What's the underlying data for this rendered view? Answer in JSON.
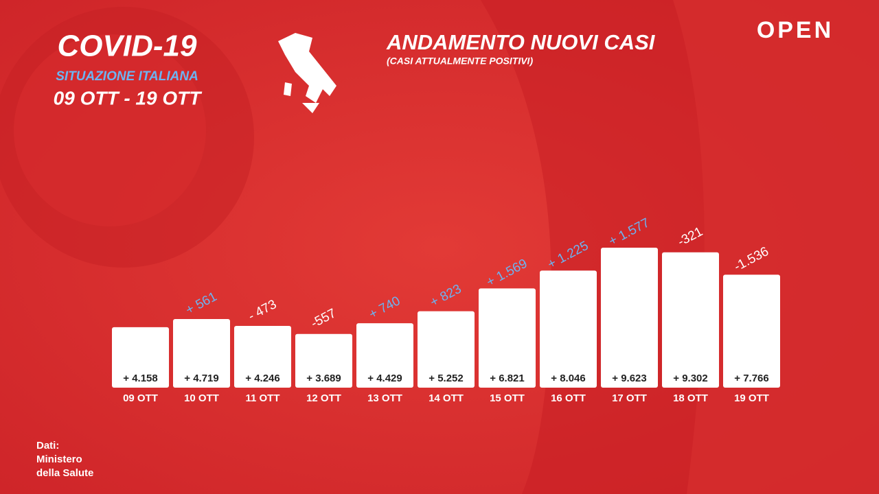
{
  "header": {
    "title": "COVID-19",
    "subtitle": "SITUAZIONE ITALIANA",
    "period": "09 OTT - 19 OTT",
    "logo": "OPEN"
  },
  "footer": {
    "source": [
      "Dati:",
      "Ministero",
      "della Salute"
    ]
  },
  "chart_data": {
    "type": "bar",
    "title": "ANDAMENTO NUOVI CASI",
    "subtitle": "(CASI ATTUALMENTE POSITIVI)",
    "categories": [
      "09 OTT",
      "10 OTT",
      "11 OTT",
      "12 OTT",
      "13 OTT",
      "14 OTT",
      "15 OTT",
      "16 OTT",
      "17 OTT",
      "18 OTT",
      "19 OTT"
    ],
    "values": [
      4158,
      4719,
      4246,
      3689,
      4429,
      5252,
      6821,
      8046,
      9623,
      9302,
      7766
    ],
    "value_labels": [
      "+ 4.158",
      "+ 4.719",
      "+ 4.246",
      "+ 3.689",
      "+ 4.429",
      "+ 5.252",
      "+ 6.821",
      "+ 8.046",
      "+ 9.623",
      "+ 9.302",
      "+ 7.766"
    ],
    "color": "#ffffff",
    "changes": {
      "values": [
        null,
        561,
        -473,
        -557,
        740,
        823,
        1569,
        1225,
        1577,
        -321,
        -1536
      ],
      "value_labels": [
        null,
        "+ 561",
        "- 473",
        "-557",
        "+ 740",
        "+ 823",
        "+ 1.569",
        "+ 1.225",
        "+ 1.577",
        "-321",
        "-1.536"
      ],
      "positive_color": "#6cb4f2",
      "negative_color": "#ffffff"
    }
  }
}
